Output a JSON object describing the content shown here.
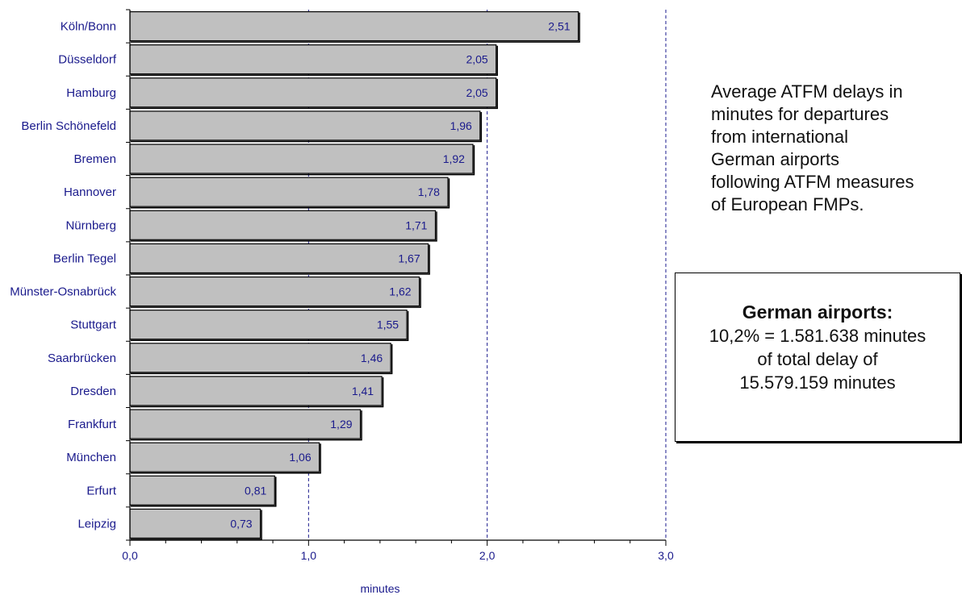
{
  "chart_data": {
    "type": "bar",
    "orientation": "horizontal",
    "categories": [
      "Köln/Bonn",
      "Düsseldorf",
      "Hamburg",
      "Berlin Schönefeld",
      "Bremen",
      "Hannover",
      "Nürnberg",
      "Berlin Tegel",
      "Münster-Osnabrück",
      "Stuttgart",
      "Saarbrücken",
      "Dresden",
      "Frankfurt",
      "München",
      "Erfurt",
      "Leipzig"
    ],
    "values": [
      2.51,
      2.05,
      2.05,
      1.96,
      1.92,
      1.78,
      1.71,
      1.67,
      1.62,
      1.55,
      1.46,
      1.41,
      1.29,
      1.06,
      0.81,
      0.73
    ],
    "value_labels": [
      "2,51",
      "2,05",
      "2,05",
      "1,96",
      "1,92",
      "1,78",
      "1,71",
      "1,67",
      "1,62",
      "1,55",
      "1,46",
      "1,41",
      "1,29",
      "1,06",
      "0,81",
      "0,73"
    ],
    "xlabel": "minutes",
    "xlim": [
      0,
      3
    ],
    "x_ticks": [
      "0,0",
      "1,0",
      "2,0",
      "3,0"
    ],
    "grid": "vertical dashed at major ticks",
    "bar_color": "#c0c0c0",
    "label_color": "#1a1a8c"
  },
  "caption": {
    "lines": [
      "Average ATFM delays in",
      "minutes for departures",
      "from international",
      "German airports",
      "following ATFM measures",
      "of European FMPs."
    ]
  },
  "summary": {
    "title": "German airports:",
    "lines": [
      "10,2% = 1.581.638 minutes",
      "of total delay of",
      "15.579.159 minutes"
    ]
  }
}
